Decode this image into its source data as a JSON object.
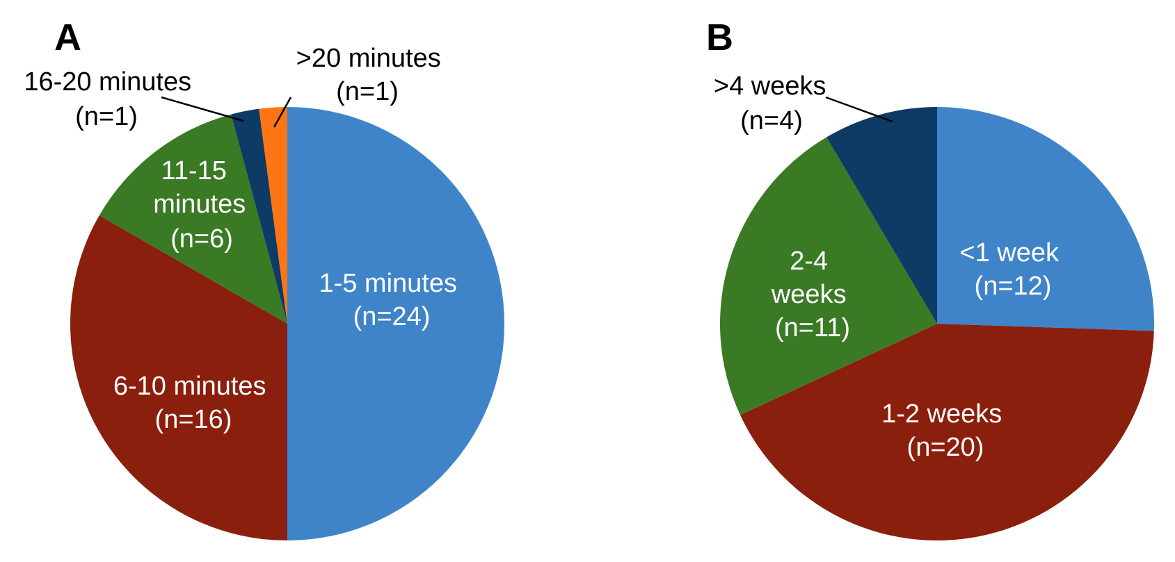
{
  "chart_data": [
    {
      "type": "pie",
      "panel_label": "A",
      "slices": [
        {
          "label": "1-5 minutes",
          "n_label": "(n=24)",
          "value": 24,
          "color": "#3f84c8"
        },
        {
          "label": "6-10 minutes",
          "n_label": "(n=16)",
          "value": 16,
          "color": "#8a1f0e"
        },
        {
          "label": "11-15 minutes",
          "n_label": "(n=6)",
          "value": 6,
          "color": "#3a7a24"
        },
        {
          "label": "16-20 minutes",
          "n_label": "(n=1)",
          "value": 1,
          "color": "#0e3a66"
        },
        {
          "label": ">20 minutes",
          "n_label": "(n=1)",
          "value": 1,
          "color": "#ff7514"
        }
      ]
    },
    {
      "type": "pie",
      "panel_label": "B",
      "slices": [
        {
          "label": "<1 week",
          "n_label": "(n=12)",
          "value": 12,
          "color": "#3f84c8"
        },
        {
          "label": "1-2 weeks",
          "n_label": "(n=20)",
          "value": 20,
          "color": "#8a1f0e"
        },
        {
          "label": "2-4 weeks",
          "n_label": "(n=11)",
          "value": 11,
          "color": "#3a7a24"
        },
        {
          "label": ">4 weeks",
          "n_label": "(n=4)",
          "value": 4,
          "color": "#0e3a66"
        }
      ]
    }
  ]
}
